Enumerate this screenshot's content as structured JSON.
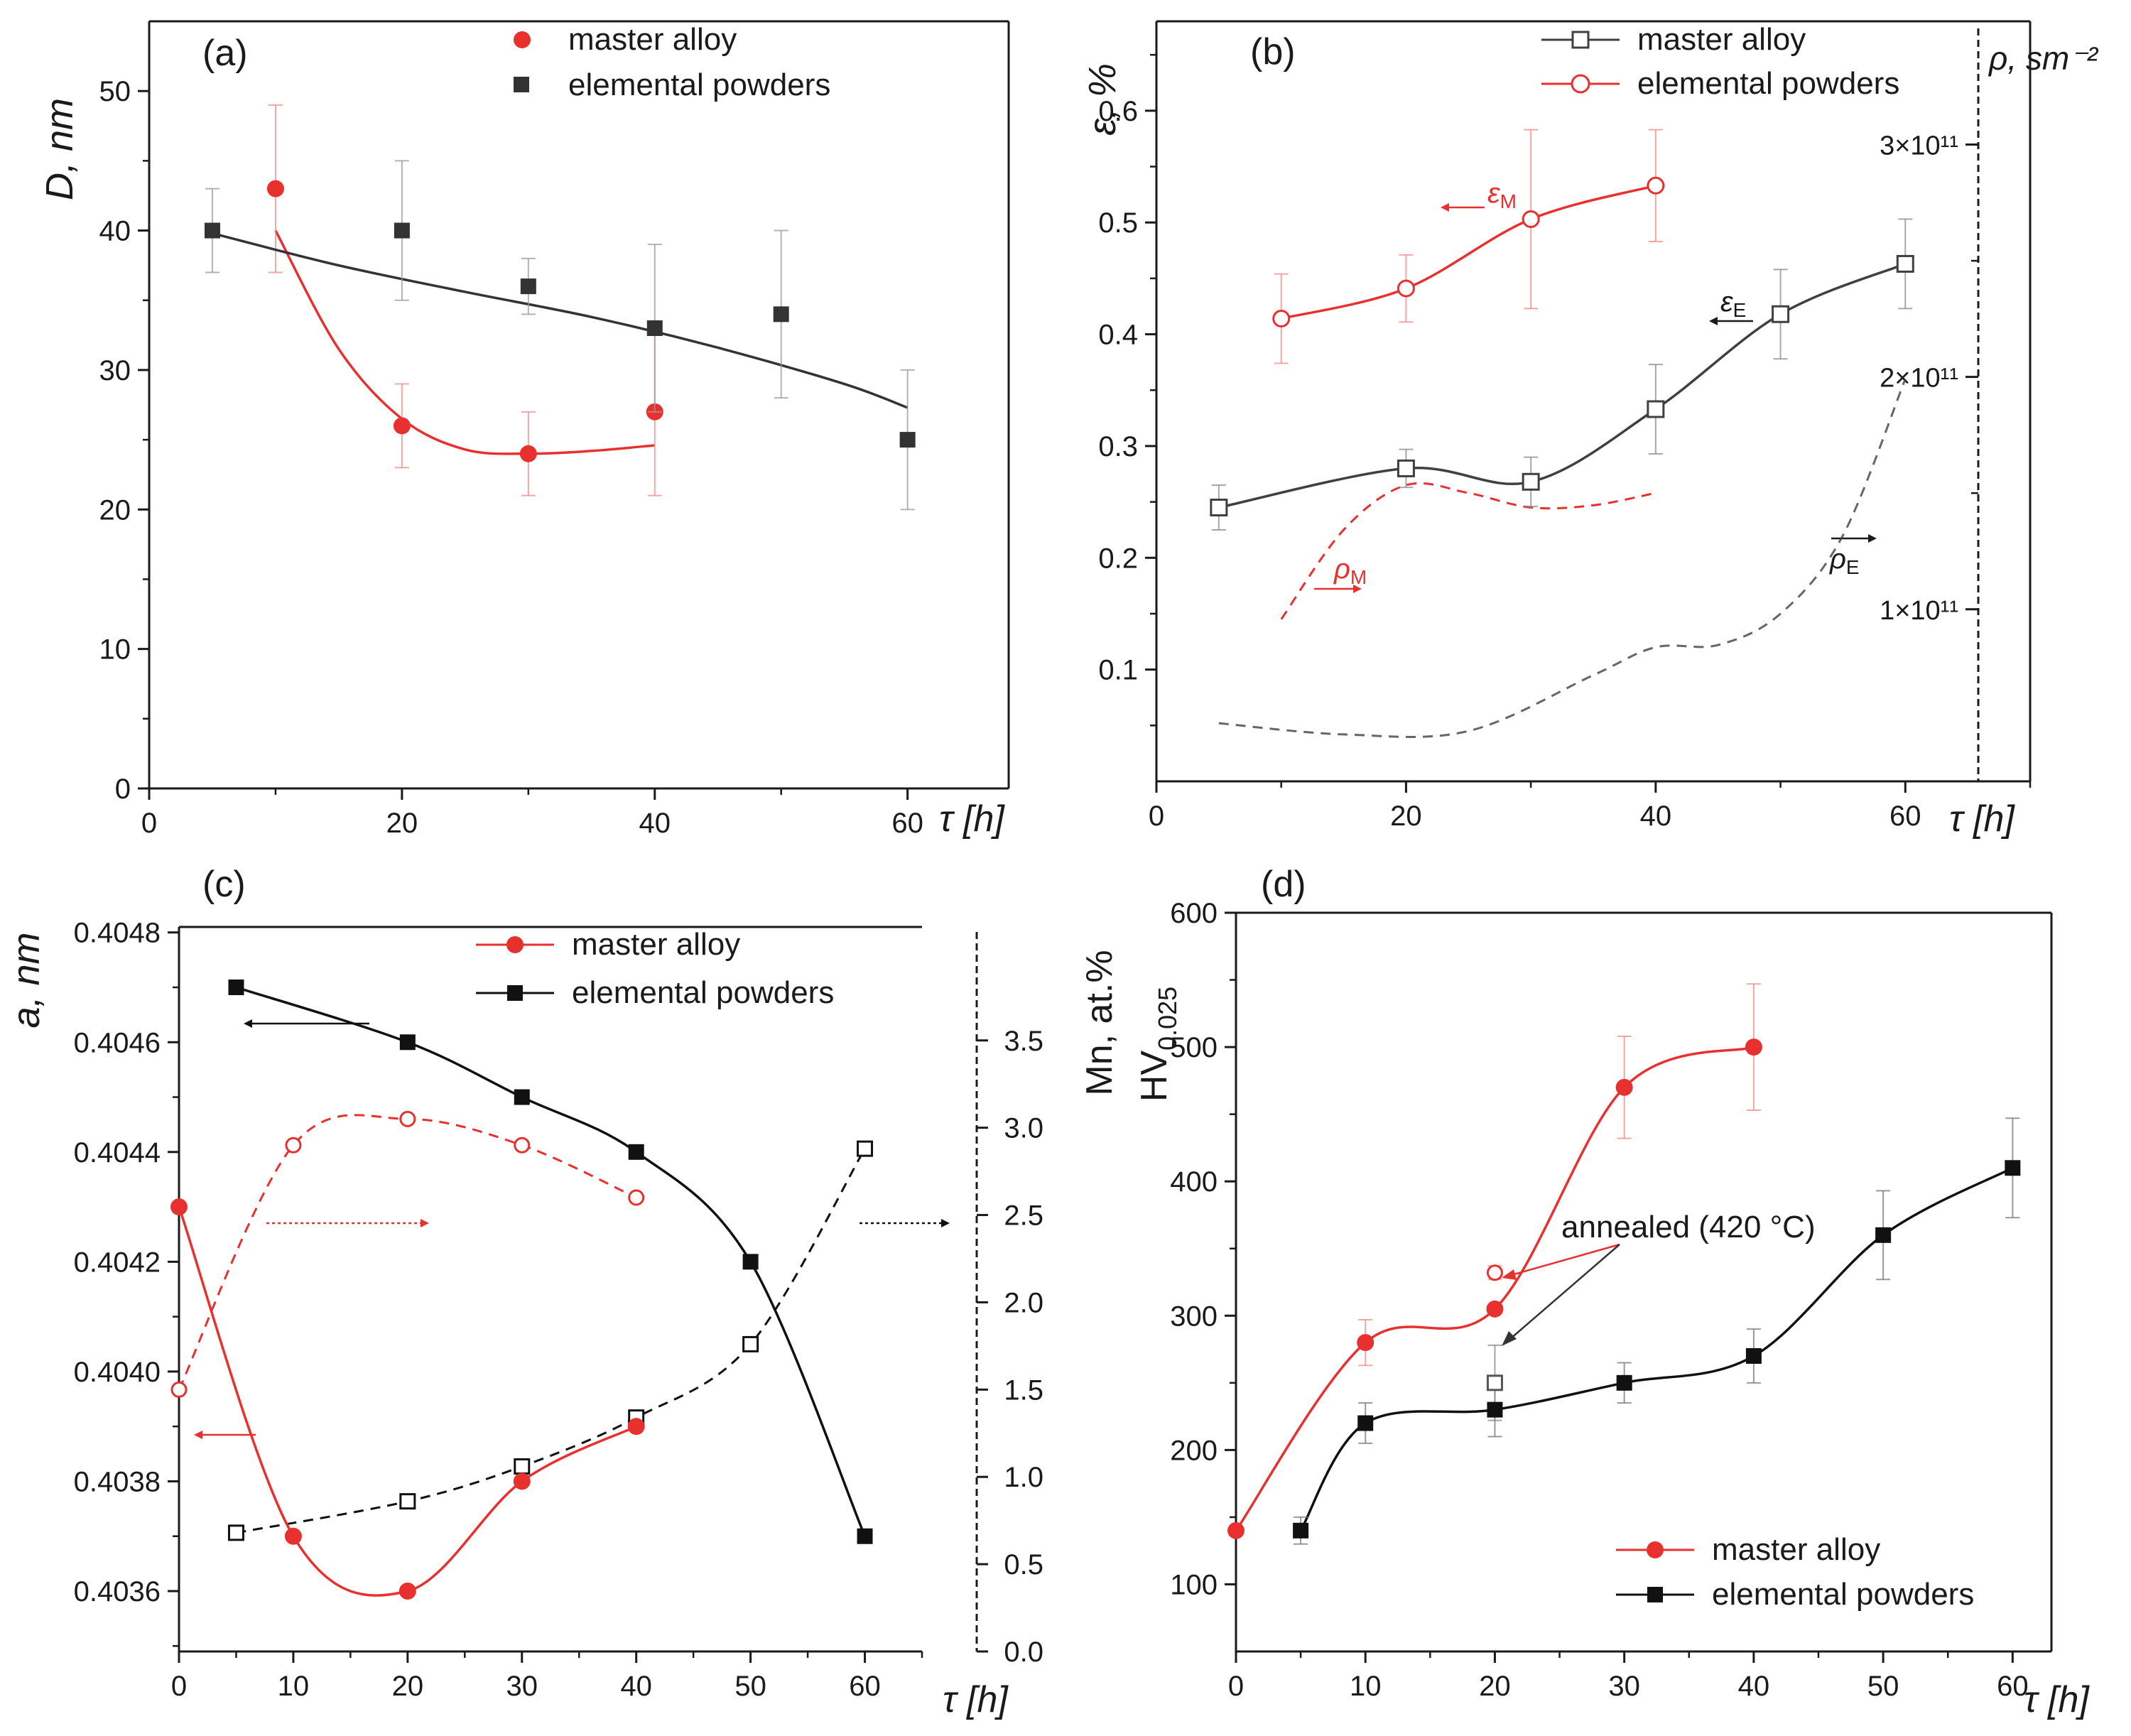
{
  "chart_data": [
    {
      "panel_label": "(a)",
      "type": "scatter",
      "xlabel": "τ [h]",
      "ylabel": "D, nm",
      "xlim": [
        0,
        68
      ],
      "ylim": [
        0,
        55
      ],
      "x_ticks": [
        0,
        20,
        40,
        60
      ],
      "y_ticks": [
        0,
        10,
        20,
        30,
        40,
        50
      ],
      "legend_position": "top-center",
      "series": [
        {
          "name": "master alloy",
          "color": "#e8312f",
          "marker": "filled-circle",
          "x": [
            10,
            20,
            30,
            40
          ],
          "y": [
            43,
            26,
            24,
            27
          ],
          "error": [
            6,
            3,
            3,
            6
          ],
          "fit": {
            "x": [
              10,
              15,
              20,
              25,
              30,
              35,
              40
            ],
            "y": [
              40,
              31.5,
              26.5,
              24.3,
              24.0,
              24.2,
              24.6
            ]
          }
        },
        {
          "name": "elemental powders",
          "color": "#333333",
          "marker": "filled-square",
          "x": [
            5,
            20,
            30,
            40,
            50,
            60
          ],
          "y": [
            40,
            40,
            36,
            33,
            34,
            25
          ],
          "error": [
            3,
            5,
            2,
            6,
            6,
            5
          ],
          "fit": {
            "x": [
              5,
              15,
              25,
              35,
              45,
              55,
              60
            ],
            "y": [
              39.8,
              37.5,
              35.6,
              33.8,
              31.6,
              29.0,
              27.3
            ]
          }
        }
      ]
    },
    {
      "panel_label": "(b)",
      "type": "line",
      "xlabel": "τ [h]",
      "ylabel": "ε, %",
      "y2label": "ρ, sm⁻²",
      "xlim": [
        0,
        70
      ],
      "ylim": [
        0,
        0.68
      ],
      "y2lim": [
        55000000000.0,
        350000000000.0
      ],
      "x_ticks": [
        0,
        20,
        40,
        60
      ],
      "y_ticks": [
        0.1,
        0.2,
        0.3,
        0.4,
        0.5,
        0.6
      ],
      "y2_ticks": [
        "1×10¹¹",
        "2×10¹¹",
        "3×10¹¹"
      ],
      "legend_position": "top-center",
      "series": [
        {
          "name": "master alloy",
          "color": "#404040",
          "marker": "open-square",
          "x": [
            5,
            20,
            30,
            40,
            50,
            60
          ],
          "y": [
            0.245,
            0.28,
            0.268,
            0.333,
            0.418,
            0.463
          ],
          "error": [
            0.02,
            0.017,
            0.022,
            0.04,
            0.04,
            0.04
          ]
        },
        {
          "name": "elemental powders",
          "color": "#e8312f",
          "marker": "open-circle",
          "x": [
            10,
            20,
            30,
            40
          ],
          "y": [
            0.414,
            0.441,
            0.503,
            0.533
          ],
          "error": [
            0.04,
            0.03,
            0.08,
            0.05
          ]
        },
        {
          "label": "ρM",
          "color": "#e8312f",
          "dashed": true,
          "x": [
            10,
            15,
            20,
            25,
            30,
            35,
            40
          ],
          "y": [
            0.145,
            0.225,
            0.265,
            0.258,
            0.245,
            0.247,
            0.258
          ]
        },
        {
          "label": "ρE",
          "color": "#404040",
          "dashed": true,
          "x": [
            5,
            15,
            25,
            35,
            40,
            45,
            50,
            55,
            60
          ],
          "y": [
            0.052,
            0.042,
            0.045,
            0.095,
            0.12,
            0.122,
            0.15,
            0.22,
            0.36
          ]
        }
      ],
      "annotations": [
        {
          "text_main": "ε",
          "text_sub": "M"
        },
        {
          "text_main": "ε",
          "text_sub": "E"
        },
        {
          "text_main": "ρ",
          "text_sub": "M"
        },
        {
          "text_main": "ρ",
          "text_sub": "E"
        }
      ]
    },
    {
      "panel_label": "(c)",
      "type": "line",
      "xlabel": "τ [h]",
      "ylabel": "a, nm",
      "y2label": "Mn, at.%",
      "xlim": [
        0,
        65
      ],
      "ylim": [
        0.40349,
        0.40481
      ],
      "y2lim": [
        0,
        4.15
      ],
      "x_ticks": [
        0,
        10,
        20,
        30,
        40,
        50,
        60
      ],
      "y_ticks": [
        "0.4036",
        "0.4038",
        "0.4040",
        "0.4042",
        "0.4044",
        "0.4046",
        "0.4048"
      ],
      "y2_ticks": [
        "0.0",
        "0.5",
        "1.0",
        "1.5",
        "2.0",
        "2.5",
        "3.0",
        "3.5"
      ],
      "legend_position": "top-center",
      "series": [
        {
          "name": "master alloy",
          "color": "#e8312f",
          "marker": "filled-circle",
          "x": [
            0,
            10,
            20,
            30,
            40
          ],
          "y": [
            0.4043,
            0.4037,
            0.4036,
            0.4038,
            0.4039
          ]
        },
        {
          "name": "elemental powders",
          "color": "#111111",
          "marker": "filled-square",
          "x": [
            5,
            20,
            30,
            40,
            50,
            60
          ],
          "y": [
            0.4047,
            0.4046,
            0.4045,
            0.4044,
            0.4042,
            0.4037
          ]
        },
        {
          "label": "Mn master alloy",
          "color": "#e8312f",
          "marker": "open-circle",
          "dashed": true,
          "axis": "y2",
          "x": [
            0,
            10,
            20,
            30,
            40
          ],
          "y": [
            1.5,
            2.9,
            3.05,
            2.9,
            2.6
          ]
        },
        {
          "label": "Mn elemental powders",
          "color": "#111111",
          "marker": "open-square",
          "dashed": true,
          "axis": "y2",
          "x": [
            5,
            20,
            30,
            40,
            50,
            60
          ],
          "y": [
            0.68,
            0.86,
            1.06,
            1.34,
            1.76,
            2.88
          ]
        }
      ]
    },
    {
      "panel_label": "(d)",
      "type": "line",
      "xlabel": "τ [h]",
      "ylabel_main": "HV",
      "ylabel_sub": "0.025",
      "xlim": [
        0,
        63
      ],
      "ylim": [
        50,
        600
      ],
      "x_ticks": [
        0,
        10,
        20,
        30,
        40,
        50,
        60
      ],
      "y_ticks": [
        100,
        200,
        300,
        400,
        500,
        600
      ],
      "legend_position": "bottom-right",
      "series": [
        {
          "name": "master alloy",
          "color": "#e8312f",
          "marker": "filled-circle",
          "x": [
            0,
            10,
            20,
            30,
            40
          ],
          "y": [
            140,
            280,
            305,
            470,
            500
          ],
          "error": [
            0,
            17,
            0,
            38,
            47
          ]
        },
        {
          "name": "elemental powders",
          "color": "#111111",
          "marker": "filled-square",
          "x": [
            5,
            10,
            20,
            30,
            40,
            50,
            60
          ],
          "y": [
            140,
            220,
            230,
            250,
            270,
            360,
            410
          ],
          "error": [
            10,
            15,
            20,
            15,
            20,
            33,
            37
          ]
        }
      ],
      "annealed_points": [
        {
          "x": 20,
          "y": 332,
          "color": "#e8312f",
          "marker": "open-circle"
        },
        {
          "x": 20,
          "y": 250,
          "color": "#555555",
          "marker": "open-square"
        }
      ],
      "annotation": "annealed (420 °C)"
    }
  ]
}
